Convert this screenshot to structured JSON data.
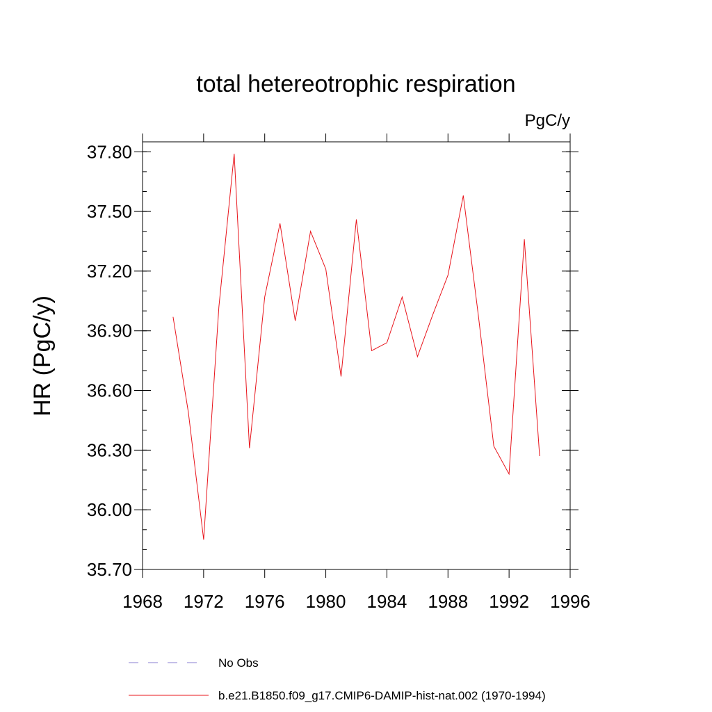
{
  "chart_data": {
    "type": "line",
    "title": "total hetereotrophic respiration",
    "units_label": "PgC/y",
    "xlabel": "",
    "ylabel": "HR  (PgC/y)",
    "xlim": [
      1968,
      1996
    ],
    "ylim": [
      35.7,
      37.85
    ],
    "x_ticks": [
      1968,
      1972,
      1976,
      1980,
      1984,
      1988,
      1992,
      1996
    ],
    "x_tick_labels": [
      "1968",
      "1972",
      "1976",
      "1980",
      "1984",
      "1988",
      "1992",
      "1996"
    ],
    "y_ticks": [
      35.7,
      36.0,
      36.3,
      36.6,
      36.9,
      37.2,
      37.5,
      37.8
    ],
    "y_tick_labels": [
      "35.70",
      "36.00",
      "36.30",
      "36.60",
      "36.90",
      "37.20",
      "37.50",
      "37.80"
    ],
    "grid": false,
    "legend_position": "bottom",
    "series": [
      {
        "name": "b.e21.B1850.f09_g17.CMIP6-DAMIP-hist-nat.002 (1970-1994)",
        "color": "#e8141b",
        "x": [
          1970,
          1971,
          1972,
          1973,
          1974,
          1975,
          1976,
          1977,
          1978,
          1979,
          1980,
          1981,
          1982,
          1983,
          1984,
          1985,
          1986,
          1987,
          1988,
          1989,
          1990,
          1991,
          1992,
          1993,
          1994
        ],
        "y": [
          36.97,
          36.49,
          35.85,
          37.02,
          37.79,
          36.31,
          37.07,
          37.44,
          36.95,
          37.4,
          37.21,
          36.67,
          37.46,
          36.8,
          36.84,
          37.07,
          36.77,
          36.98,
          37.18,
          37.58,
          36.97,
          36.32,
          36.18,
          37.36,
          36.27
        ]
      }
    ],
    "legend": [
      {
        "label": "No Obs",
        "color": "#8a7fd0",
        "style": "dashed"
      },
      {
        "label": "b.e21.B1850.f09_g17.CMIP6-DAMIP-hist-nat.002 (1970-1994)",
        "color": "#e8141b",
        "style": "solid"
      }
    ]
  }
}
